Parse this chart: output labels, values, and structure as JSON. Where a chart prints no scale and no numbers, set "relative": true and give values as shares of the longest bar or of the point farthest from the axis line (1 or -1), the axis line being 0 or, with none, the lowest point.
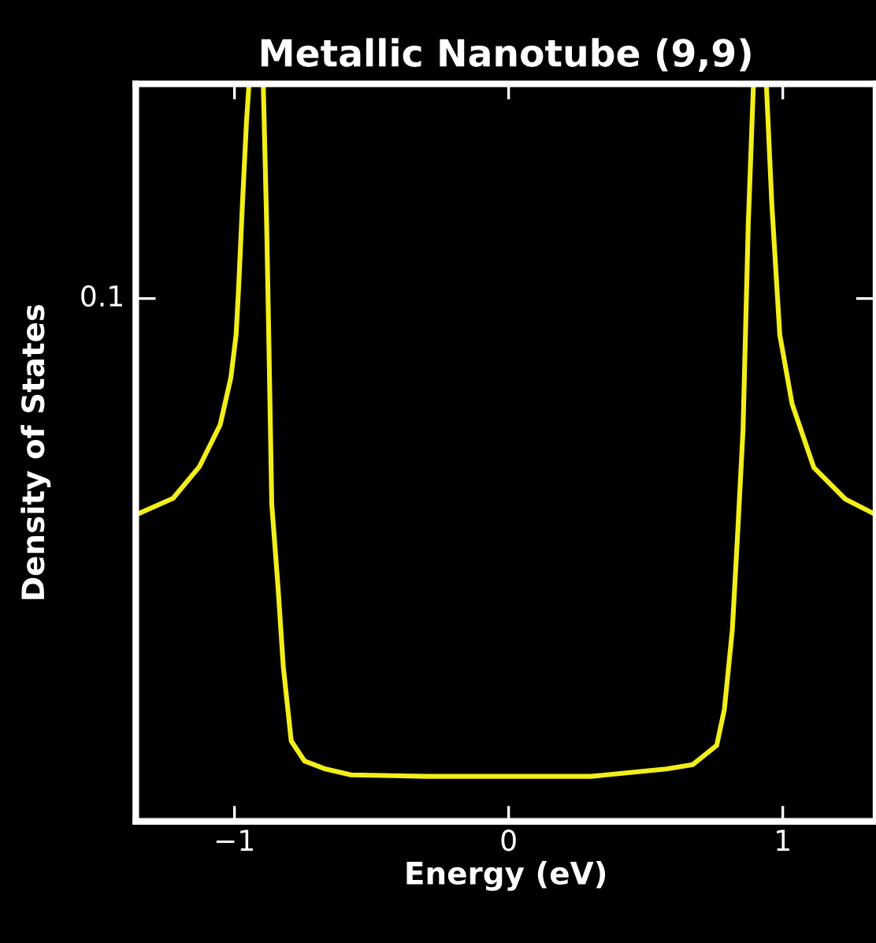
{
  "chart_data": {
    "type": "line",
    "title": "Metallic Nanotube (9,9)",
    "xlabel": "Energy (eV)",
    "ylabel": "Density of States",
    "x": [
      -1.358,
      -1.224,
      -1.128,
      -1.052,
      -1.013,
      -0.994,
      -0.984,
      -0.971,
      -0.956,
      -0.947,
      -0.92,
      -0.895,
      -0.883,
      -0.875,
      -0.864,
      -0.841,
      -0.822,
      -0.793,
      -0.745,
      -0.668,
      -0.575,
      -0.3,
      0,
      0.3,
      0.576,
      0.672,
      0.759,
      0.787,
      0.816,
      0.835,
      0.855,
      0.874,
      0.893,
      0.915,
      0.94,
      0.96,
      0.989,
      1.034,
      1.113,
      1.228,
      1.339
    ],
    "series": [
      {
        "color": "#f2ee1a",
        "values": [
          0.416,
          0.438,
          0.481,
          0.538,
          0.602,
          0.66,
          0.73,
          0.837,
          0.95,
          1,
          null,
          1,
          0.816,
          0.66,
          0.43,
          0.317,
          0.21,
          0.109,
          0.082,
          0.071,
          0.063,
          0.061,
          0.061,
          0.061,
          0.071,
          0.077,
          0.103,
          0.152,
          0.26,
          0.388,
          0.531,
          0.809,
          1,
          null,
          1,
          0.837,
          0.66,
          0.566,
          0.48,
          0.437,
          0.416
        ]
      }
    ],
    "relative": true,
    "annotations": [
      "0.1"
    ],
    "xlim": [
      -1.36,
      1.34
    ],
    "xticks": [
      -1,
      0,
      1
    ],
    "grid": false,
    "legend": false
  }
}
